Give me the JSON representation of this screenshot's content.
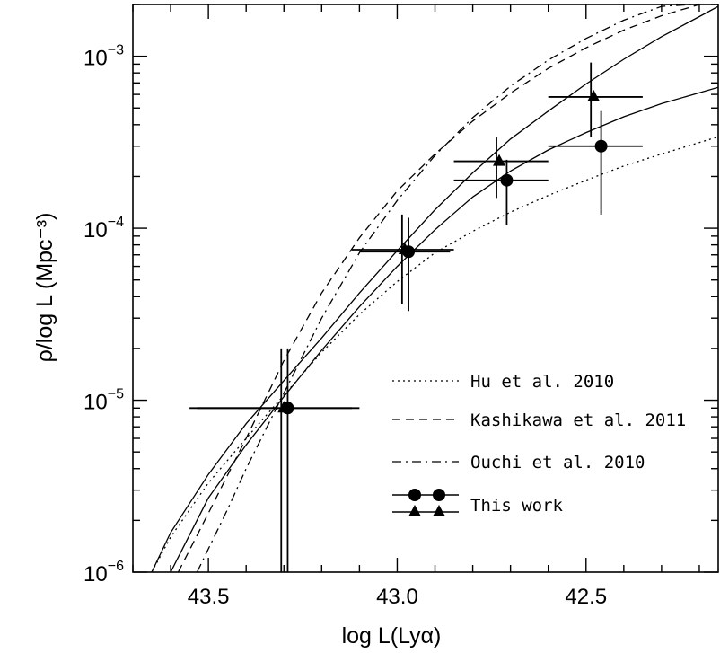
{
  "chart_data": {
    "type": "line",
    "xlabel": "log L(Lyα)",
    "ylabel": "ρ/log L (Mpc⁻³)",
    "xlim": [
      43.7,
      42.15
    ],
    "ylim": [
      1e-06,
      0.002
    ],
    "yscale": "log",
    "x_ticks": [
      43.5,
      43.0,
      42.5
    ],
    "x_tick_labels": [
      "43.5",
      "43.0",
      "42.5"
    ],
    "y_ticks": [
      1e-06,
      1e-05,
      0.0001,
      0.001
    ],
    "y_tick_labels": [
      {
        "base": "10",
        "exp": "−6"
      },
      {
        "base": "10",
        "exp": "−5"
      },
      {
        "base": "10",
        "exp": "−4"
      },
      {
        "base": "10",
        "exp": "−3"
      }
    ],
    "grid": false,
    "legend_position": "bottom-right",
    "series": [
      {
        "name": "Hu et al. 2010",
        "style": "dotted",
        "x": [
          43.65,
          43.6,
          43.5,
          43.4,
          43.3,
          43.2,
          43.1,
          43.0,
          42.9,
          42.8,
          42.7,
          42.6,
          42.5,
          42.4,
          42.3,
          42.15
        ],
        "y": [
          1e-06,
          1.6e-06,
          3.3e-06,
          6e-06,
          1.07e-05,
          1.9e-05,
          3.15e-05,
          4.9e-05,
          7.2e-05,
          9.6e-05,
          0.000124,
          0.000155,
          0.00019,
          0.00023,
          0.00027,
          0.00034
        ]
      },
      {
        "name": "Kashikawa et al. 2011",
        "style": "dashed",
        "x": [
          43.58,
          43.5,
          43.4,
          43.3,
          43.2,
          43.1,
          43.0,
          42.9,
          42.8,
          42.7,
          42.6,
          42.5,
          42.4,
          42.3,
          42.2
        ],
        "y": [
          1e-06,
          2.2e-06,
          6e-06,
          1.7e-05,
          4.2e-05,
          8.8e-05,
          0.000165,
          0.00027,
          0.00042,
          0.00061,
          0.00085,
          0.00112,
          0.00142,
          0.00172,
          0.002
        ]
      },
      {
        "name": "Ouchi et al. 2010",
        "style": "dashdot",
        "x": [
          43.53,
          43.45,
          43.4,
          43.3,
          43.2,
          43.1,
          43.0,
          42.9,
          42.8,
          42.7,
          42.6,
          42.5,
          42.4,
          42.3,
          42.22
        ],
        "y": [
          1e-06,
          2.3e-06,
          4e-06,
          1.1e-05,
          3e-05,
          7.2e-05,
          0.000145,
          0.000265,
          0.00044,
          0.00067,
          0.00095,
          0.00127,
          0.00162,
          0.00195,
          0.002
        ]
      },
      {
        "name": "This work (circles)",
        "style": "solid",
        "x": [
          43.6,
          43.5,
          43.4,
          43.3,
          43.2,
          43.1,
          43.0,
          42.9,
          42.8,
          42.7,
          42.6,
          42.5,
          42.4,
          42.3,
          42.15
        ],
        "y": [
          1e-06,
          2.7e-06,
          5.5e-06,
          1.05e-05,
          1.95e-05,
          3.5e-05,
          6e-05,
          9.8e-05,
          0.000152,
          0.000215,
          0.000285,
          0.00036,
          0.000445,
          0.00053,
          0.00066
        ]
      },
      {
        "name": "This work (triangles)",
        "style": "solid",
        "x": [
          43.65,
          43.6,
          43.5,
          43.4,
          43.3,
          43.2,
          43.1,
          43.0,
          42.9,
          42.8,
          42.7,
          42.6,
          42.5,
          42.4,
          42.3,
          42.2,
          42.15
        ],
        "y": [
          1e-06,
          1.7e-06,
          3.7e-06,
          7.3e-06,
          1.3e-05,
          2.3e-05,
          4.2e-05,
          7.4e-05,
          0.000128,
          0.00021,
          0.00033,
          0.00048,
          0.00069,
          0.00096,
          0.0013,
          0.0017,
          0.00195
        ]
      }
    ],
    "points": [
      {
        "marker": "circle",
        "x": 43.29,
        "y": 9e-06,
        "xerr": [
          43.55,
          43.1
        ],
        "yerr": [
          1e-06,
          2e-05
        ]
      },
      {
        "marker": "circle",
        "x": 42.97,
        "y": 7.3e-05,
        "xerr": [
          43.1,
          42.86
        ],
        "yerr": [
          3.3e-05,
          0.000115
        ]
      },
      {
        "marker": "circle",
        "x": 42.71,
        "y": 0.00019,
        "xerr": [
          42.85,
          42.6
        ],
        "yerr": [
          0.000105,
          0.00025
        ]
      },
      {
        "marker": "circle",
        "x": 42.46,
        "y": 0.0003,
        "xerr": [
          42.6,
          42.35
        ],
        "yerr": [
          0.00012,
          0.00048
        ]
      },
      {
        "marker": "triangle",
        "x": 43.3,
        "y": 9e-06,
        "xerr": [
          43.53,
          43.12
        ],
        "yerr": [
          1e-06,
          2e-05
        ]
      },
      {
        "marker": "triangle",
        "x": 42.98,
        "y": 7.5e-05,
        "xerr": [
          43.12,
          42.85
        ],
        "yerr": [
          3.6e-05,
          0.00012
        ]
      },
      {
        "marker": "triangle",
        "x": 42.73,
        "y": 0.000245,
        "xerr": [
          42.85,
          42.6
        ],
        "yerr": [
          0.00015,
          0.00034
        ]
      },
      {
        "marker": "triangle",
        "x": 42.48,
        "y": 0.00058,
        "xerr": [
          42.6,
          42.35
        ],
        "yerr": [
          0.00034,
          0.00092
        ]
      }
    ],
    "legend": [
      {
        "label": "Hu et al. 2010",
        "style": "dotted"
      },
      {
        "label": "Kashikawa et al. 2011",
        "style": "dashed"
      },
      {
        "label": "Ouchi et al. 2010",
        "style": "dashdot"
      },
      {
        "label": "This work",
        "style": "solid",
        "markers": [
          "circle",
          "triangle"
        ]
      }
    ]
  }
}
